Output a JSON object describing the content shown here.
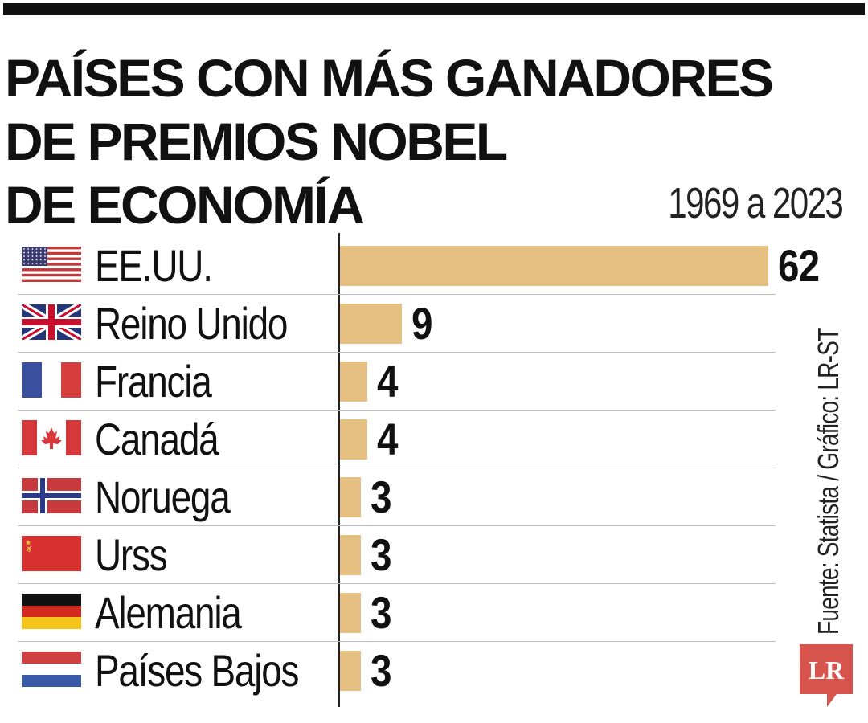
{
  "title_lines": [
    "PAÍSES CON MÁS GANADORES",
    "DE PREMIOS NOBEL",
    "DE ECONOMÍA"
  ],
  "period": "1969 a 2023",
  "source": "Fuente: Statista / Gráfico: LR-ST",
  "logo_text": "LR",
  "colors": {
    "bar": "#e6bf82",
    "text": "#111111",
    "logo": "#d6544b"
  },
  "chart_data": {
    "type": "bar",
    "orientation": "horizontal",
    "title": "PAÍSES CON MÁS GANADORES DE PREMIOS NOBEL DE ECONOMÍA",
    "subtitle": "1969 a 2023",
    "categories": [
      "EE.UU.",
      "Reino Unido",
      "Francia",
      "Canadá",
      "Noruega",
      "Urss",
      "Alemania",
      "Países Bajos"
    ],
    "values": [
      62,
      9,
      4,
      4,
      3,
      3,
      3,
      3
    ],
    "value_labels": [
      "62",
      "9",
      "4",
      "4",
      "3",
      "3",
      "3",
      "3"
    ],
    "flags": [
      "usa-flag-icon",
      "uk-flag-icon",
      "france-flag-icon",
      "canada-flag-icon",
      "norway-flag-icon",
      "ussr-flag-icon",
      "germany-flag-icon",
      "netherlands-flag-icon"
    ],
    "xlim": [
      0,
      62
    ],
    "xlabel": "",
    "ylabel": "",
    "grid": false,
    "legend": "none"
  }
}
